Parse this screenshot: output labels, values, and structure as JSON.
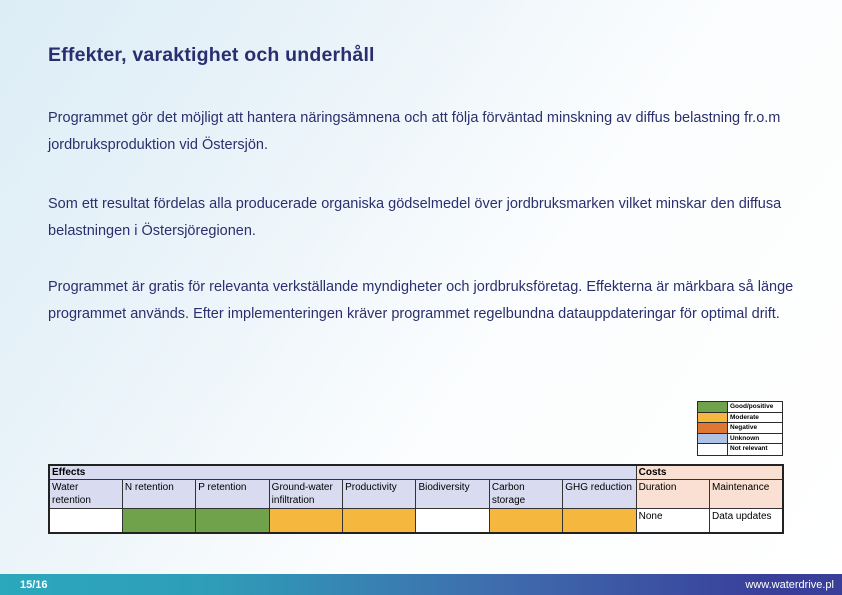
{
  "slide": {
    "title": "Effekter, varaktighet och underhåll",
    "paragraphs": [
      "Programmet gör det möjligt att hantera näringsämnena och att följa förväntad minskning av diffus belastning fr.o.m jordbruksproduktion vid Östersjön.",
      "Som ett resultat fördelas alla producerade organiska gödselmedel över jordbruksmarken vilket minskar den diffusa belastningen i Östersjöregionen.",
      "Programmet är gratis för relevanta verkställande myndigheter och jordbruksföretag. Effekterna är märkbara så länge programmet används. Efter implementeringen kräver programmet regelbundna datauppdateringar för optimal drift."
    ]
  },
  "legend": {
    "rows": [
      {
        "key": "good",
        "label": "Good/positive"
      },
      {
        "key": "moderate",
        "label": "Moderate"
      },
      {
        "key": "negative",
        "label": "Negative"
      },
      {
        "key": "unknown",
        "label": "Unknown"
      },
      {
        "key": "not_relevant",
        "label": "Not relevant"
      }
    ]
  },
  "table": {
    "effects_title": "Effects",
    "costs_title": "Costs",
    "columns": [
      "Water retention",
      "N retention",
      "P retention",
      "Ground-water infiltration",
      "Productivity",
      "Biodiversity",
      "Carbon storage",
      "GHG reduction",
      "Duration",
      "Maintenance"
    ],
    "row_values": [
      "",
      "",
      "",
      "",
      "",
      "",
      "",
      "",
      "None",
      "Data updates"
    ],
    "row_fills": [
      "not_relevant",
      "good",
      "good",
      "moderate",
      "moderate",
      "not_relevant",
      "moderate",
      "moderate",
      "not_relevant",
      "not_relevant"
    ]
  },
  "colors": {
    "good": "#6fa24b",
    "moderate": "#f5b73d",
    "negative": "#dd7733",
    "unknown": "#aec2e6",
    "not_relevant": "#ffffff",
    "effects_header_bg": "#d9dcf0",
    "costs_header_bg": "#f9e0d2",
    "title_text": "#292e6e",
    "footer_teal": "#2ba8bc",
    "footer_indigo": "#393e99"
  },
  "footer": {
    "page_number": "15/16",
    "website": "www.waterdrive.pl"
  }
}
